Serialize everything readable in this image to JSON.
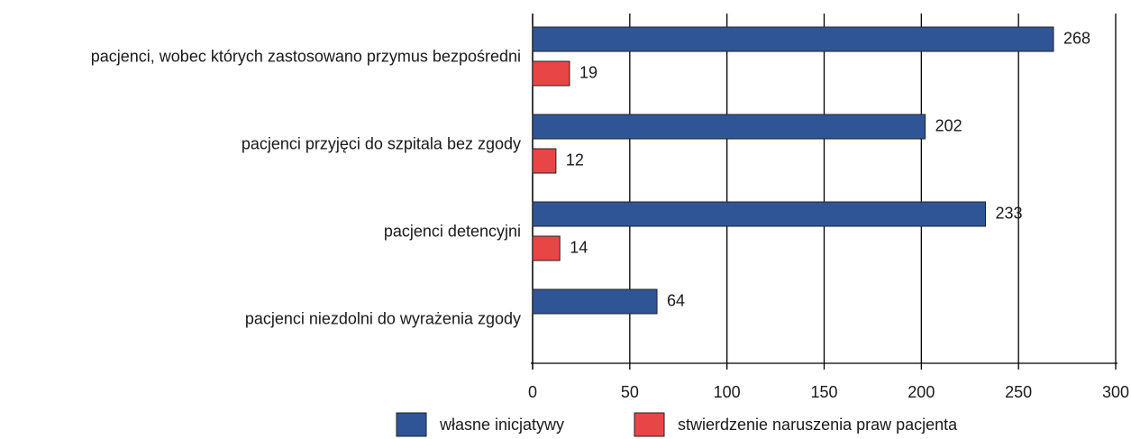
{
  "chart_data": {
    "type": "bar",
    "orientation": "horizontal",
    "categories": [
      "pacjenci, wobec których zastosowano przymus bezpośredni",
      "pacjenci przyjęci do szpitala bez zgody",
      "pacjenci detencyjni",
      "pacjenci niezdolni do wyrażenia zgody"
    ],
    "series": [
      {
        "name": "własne inicjatywy",
        "color": "#2f5597",
        "values": [
          268,
          202,
          233,
          64
        ]
      },
      {
        "name": "stwierdzenie naruszenia praw pacjenta",
        "color": "#e84646",
        "values": [
          19,
          12,
          14,
          null
        ]
      }
    ],
    "xlim": [
      0,
      300
    ],
    "xticks": [
      0,
      50,
      100,
      150,
      200,
      250,
      300
    ],
    "grid": true,
    "legend": "bottom"
  }
}
